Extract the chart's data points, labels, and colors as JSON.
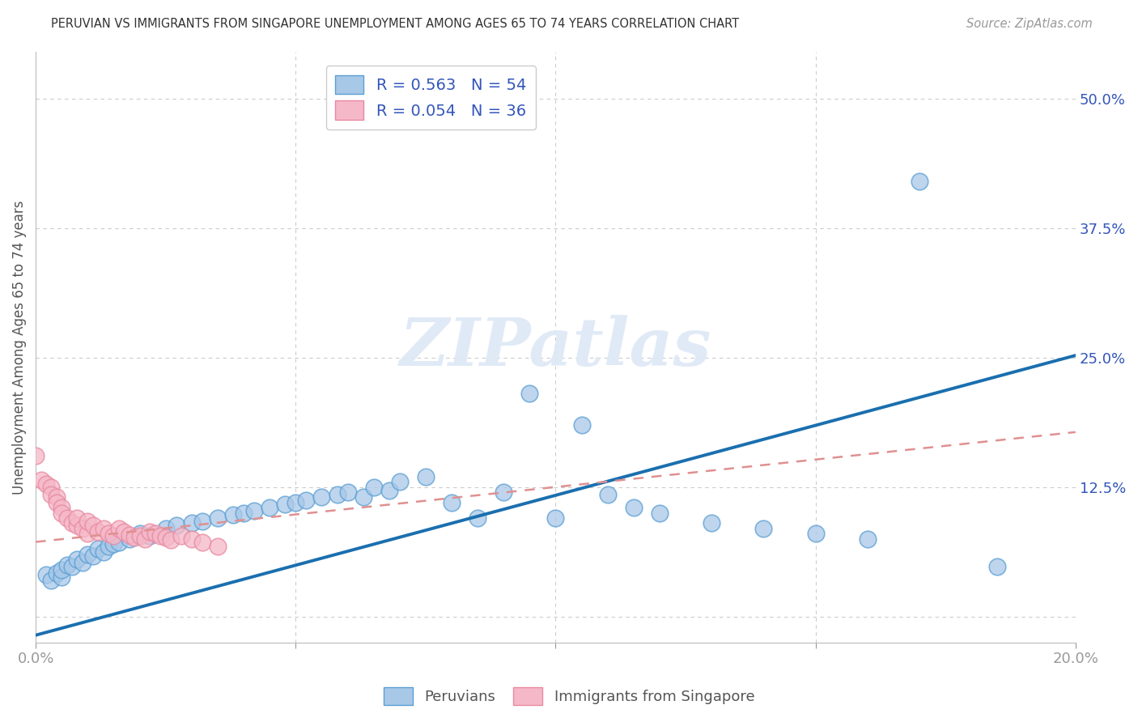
{
  "title": "PERUVIAN VS IMMIGRANTS FROM SINGAPORE UNEMPLOYMENT AMONG AGES 65 TO 74 YEARS CORRELATION CHART",
  "source": "Source: ZipAtlas.com",
  "ylabel": "Unemployment Among Ages 65 to 74 years",
  "xlim": [
    0.0,
    0.2
  ],
  "ylim": [
    -0.025,
    0.545
  ],
  "xticks": [
    0.0,
    0.05,
    0.1,
    0.15,
    0.2
  ],
  "xtick_labels": [
    "0.0%",
    "",
    "",
    "",
    "20.0%"
  ],
  "yticks_right": [
    0.0,
    0.125,
    0.25,
    0.375,
    0.5
  ],
  "ytick_labels_right": [
    "",
    "12.5%",
    "25.0%",
    "37.5%",
    "50.0%"
  ],
  "blue_color": "#a8c8e8",
  "blue_edge_color": "#5a9fd4",
  "pink_color": "#f5b8c8",
  "pink_edge_color": "#e88aa0",
  "blue_line_color": "#1a6faf",
  "pink_line_color": "#e09090",
  "legend_R_blue": "R = 0.563",
  "legend_N_blue": "N = 54",
  "legend_R_pink": "R = 0.054",
  "legend_N_pink": "N = 36",
  "watermark": "ZIPatlas",
  "blue_line_x0": 0.0,
  "blue_line_x1": 0.2,
  "blue_line_y0": -0.018,
  "blue_line_y1": 0.252,
  "pink_line_x0": 0.0,
  "pink_line_x1": 0.2,
  "pink_line_y0": 0.072,
  "pink_line_y1": 0.178,
  "blue_x": [
    0.002,
    0.003,
    0.004,
    0.005,
    0.005,
    0.006,
    0.007,
    0.008,
    0.009,
    0.01,
    0.011,
    0.012,
    0.013,
    0.014,
    0.015,
    0.016,
    0.018,
    0.02,
    0.022,
    0.025,
    0.027,
    0.03,
    0.032,
    0.035,
    0.038,
    0.04,
    0.042,
    0.045,
    0.048,
    0.05,
    0.052,
    0.055,
    0.058,
    0.06,
    0.063,
    0.065,
    0.068,
    0.07,
    0.075,
    0.08,
    0.085,
    0.09,
    0.095,
    0.1,
    0.105,
    0.11,
    0.115,
    0.12,
    0.13,
    0.14,
    0.15,
    0.16,
    0.17,
    0.185
  ],
  "blue_y": [
    0.04,
    0.035,
    0.042,
    0.038,
    0.045,
    0.05,
    0.048,
    0.055,
    0.052,
    0.06,
    0.058,
    0.065,
    0.062,
    0.068,
    0.07,
    0.072,
    0.075,
    0.08,
    0.078,
    0.085,
    0.088,
    0.09,
    0.092,
    0.095,
    0.098,
    0.1,
    0.102,
    0.105,
    0.108,
    0.11,
    0.112,
    0.115,
    0.118,
    0.12,
    0.115,
    0.125,
    0.122,
    0.13,
    0.135,
    0.11,
    0.095,
    0.12,
    0.215,
    0.095,
    0.185,
    0.118,
    0.105,
    0.1,
    0.09,
    0.085,
    0.08,
    0.075,
    0.42,
    0.048
  ],
  "pink_x": [
    0.0,
    0.001,
    0.002,
    0.003,
    0.003,
    0.004,
    0.004,
    0.005,
    0.005,
    0.006,
    0.007,
    0.008,
    0.008,
    0.009,
    0.01,
    0.01,
    0.011,
    0.012,
    0.013,
    0.014,
    0.015,
    0.016,
    0.017,
    0.018,
    0.019,
    0.02,
    0.021,
    0.022,
    0.023,
    0.024,
    0.025,
    0.026,
    0.028,
    0.03,
    0.032,
    0.035
  ],
  "pink_y": [
    0.155,
    0.132,
    0.128,
    0.125,
    0.118,
    0.115,
    0.11,
    0.105,
    0.1,
    0.095,
    0.09,
    0.088,
    0.095,
    0.085,
    0.08,
    0.092,
    0.088,
    0.082,
    0.085,
    0.08,
    0.078,
    0.085,
    0.082,
    0.079,
    0.076,
    0.078,
    0.075,
    0.082,
    0.08,
    0.078,
    0.076,
    0.074,
    0.078,
    0.075,
    0.072,
    0.068
  ]
}
